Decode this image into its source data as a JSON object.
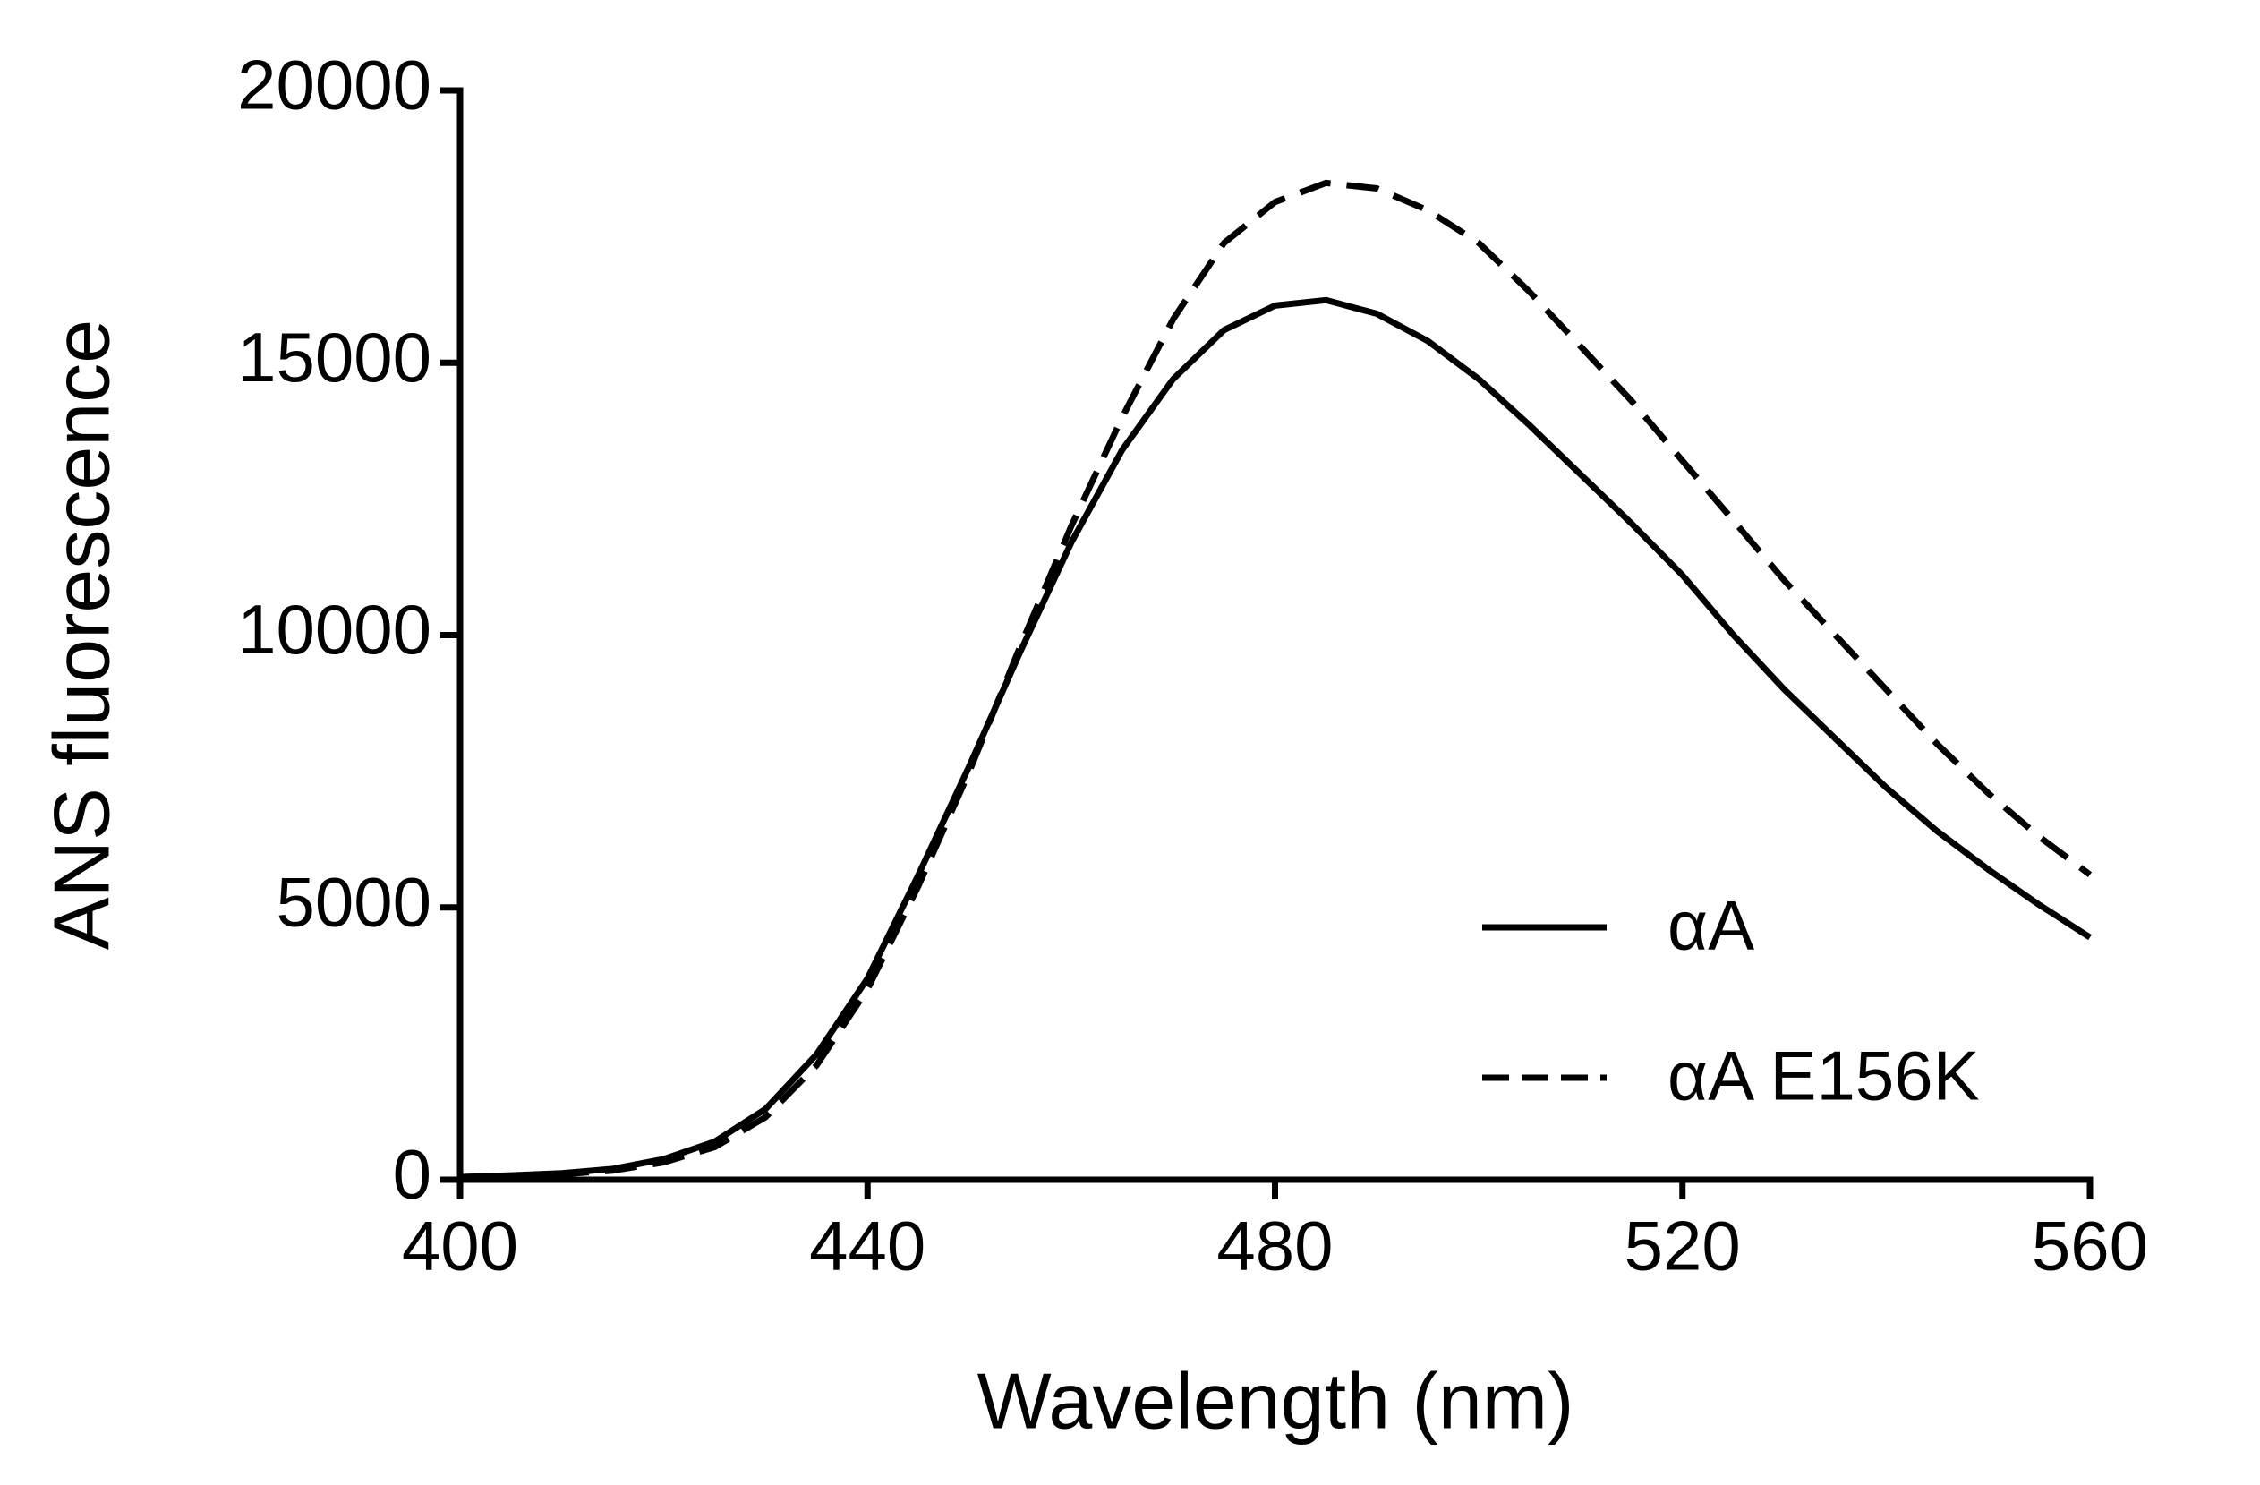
{
  "chart_data": {
    "type": "line",
    "x_label": "Wavelength (nm)",
    "y_label": "ANS fluorescence",
    "x": [
      400,
      405,
      410,
      415,
      420,
      425,
      430,
      435,
      440,
      445,
      450,
      455,
      460,
      465,
      470,
      475,
      480,
      485,
      490,
      495,
      500,
      505,
      510,
      515,
      520,
      525,
      530,
      535,
      540,
      545,
      550,
      555,
      560
    ],
    "series": [
      {
        "name": "αA",
        "color": "#000000",
        "dash": "solid",
        "values": [
          50,
          80,
          120,
          200,
          380,
          700,
          1300,
          2300,
          3700,
          5600,
          7600,
          9700,
          11700,
          13400,
          14700,
          15600,
          16050,
          16150,
          15900,
          15400,
          14700,
          13850,
          12950,
          12050,
          11100,
          10000,
          9000,
          8100,
          7200,
          6400,
          5700,
          5050,
          4450
        ]
      },
      {
        "name": "αA E156K",
        "color": "#000000",
        "dash": "dashed",
        "values": [
          40,
          60,
          100,
          170,
          320,
          600,
          1150,
          2100,
          3500,
          5400,
          7500,
          9800,
          12000,
          14000,
          15800,
          17200,
          17950,
          18300,
          18200,
          17800,
          17200,
          16300,
          15300,
          14300,
          13200,
          12100,
          11000,
          10000,
          9000,
          8000,
          7100,
          6300,
          5600
        ]
      }
    ],
    "xlim": [
      400,
      560
    ],
    "xticks": [
      400,
      440,
      480,
      520,
      560
    ],
    "ylim": [
      0,
      20000
    ],
    "yticks": [
      0,
      5000,
      10000,
      15000,
      20000
    ],
    "grid": false,
    "legend": "lower right"
  }
}
